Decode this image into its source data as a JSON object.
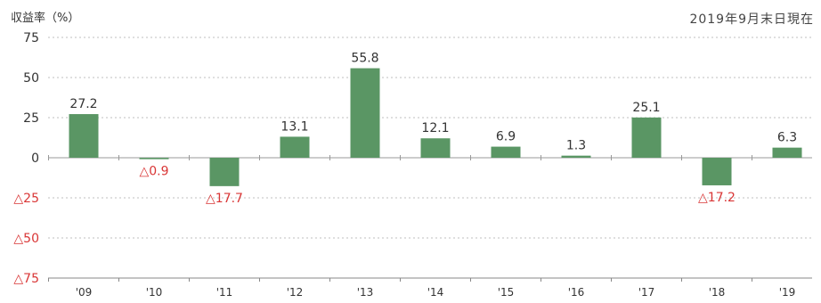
{
  "header": {
    "unit_label": "収益率（%）",
    "date_label": "2019年9月末日現在"
  },
  "colors": {
    "bar": "#5a9664",
    "negative_text": "#d93636",
    "grid": "#bfbfbf"
  },
  "chart_data": {
    "type": "bar",
    "categories": [
      "'09",
      "'10",
      "'11",
      "'12",
      "'13",
      "'14",
      "'15",
      "'16",
      "'17",
      "'18",
      "'19"
    ],
    "values": [
      27.2,
      -0.9,
      -17.7,
      13.1,
      55.8,
      12.1,
      6.9,
      1.3,
      25.1,
      -17.2,
      6.3
    ],
    "data_labels": [
      "27.2",
      "△0.9",
      "△17.7",
      "13.1",
      "55.8",
      "12.1",
      "6.9",
      "1.3",
      "25.1",
      "△17.2",
      "6.3"
    ],
    "ylim": [
      -75,
      75
    ],
    "yticks": [
      75,
      50,
      25,
      0,
      -25,
      -50,
      -75
    ],
    "ytick_labels": [
      "75",
      "50",
      "25",
      "0",
      "△25",
      "△50",
      "△75"
    ],
    "grid": true,
    "title": "",
    "xlabel": "",
    "ylabel": "収益率（%）"
  }
}
